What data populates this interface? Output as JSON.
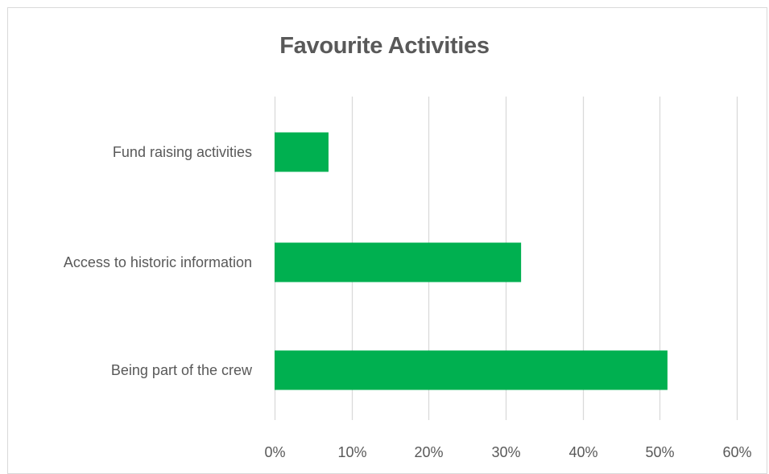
{
  "chart_data": {
    "type": "bar",
    "orientation": "horizontal",
    "title": "Favourite Activities",
    "categories": [
      "Fund raising activities",
      "Access to historic information",
      "Being part of the crew"
    ],
    "values": [
      0.07,
      0.32,
      0.51
    ],
    "xlim": [
      0,
      0.6
    ],
    "x_ticks": [
      0,
      0.1,
      0.2,
      0.3,
      0.4,
      0.5,
      0.6
    ],
    "x_tick_labels": [
      "0%",
      "10%",
      "20%",
      "30%",
      "40%",
      "50%",
      "60%"
    ],
    "xlabel": "",
    "ylabel": "",
    "grid": true,
    "legend": false,
    "bar_color": "#00b050",
    "grid_color": "#d9d9d9",
    "text_color": "#595959"
  }
}
